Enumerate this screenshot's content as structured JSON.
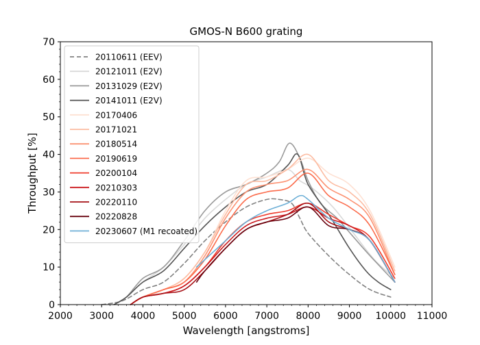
{
  "chart_data": {
    "type": "line",
    "title": "GMOS-N B600 grating",
    "xlabel": "Wavelength [angstroms]",
    "ylabel": "Throughput [%]",
    "xlim": [
      2000,
      11000
    ],
    "ylim": [
      0,
      70
    ],
    "xticks": [
      2000,
      3000,
      4000,
      5000,
      6000,
      7000,
      8000,
      9000,
      10000,
      11000
    ],
    "yticks": [
      0,
      10,
      20,
      30,
      40,
      50,
      60,
      70
    ],
    "grid": false,
    "legend_position": "upper-left",
    "series": [
      {
        "name": "20110611 (EEV)",
        "color": "#808080",
        "dash": true,
        "x": [
          3000,
          3500,
          4000,
          4500,
          5000,
          5500,
          6000,
          6500,
          7000,
          7300,
          7600,
          7800,
          8000,
          8500,
          9000,
          9500,
          10000
        ],
        "y": [
          0,
          1,
          4,
          6,
          11,
          17,
          22,
          26,
          28,
          28,
          27,
          23,
          19,
          13,
          8,
          4,
          2
        ]
      },
      {
        "name": "20121011 (E2V)",
        "color": "#d9d9d9",
        "dash": false,
        "x": [
          3300,
          3600,
          4000,
          4500,
          5000,
          5500,
          6000,
          6500,
          7000,
          7500,
          7800,
          8100,
          8600,
          9100,
          9600,
          10100
        ],
        "y": [
          0,
          2,
          6,
          10,
          16,
          23,
          28,
          32,
          34,
          36,
          33,
          31,
          26,
          19,
          12,
          7
        ]
      },
      {
        "name": "20131029 (E2V)",
        "color": "#999999",
        "dash": false,
        "x": [
          3300,
          3600,
          4000,
          4500,
          5000,
          5500,
          6000,
          6500,
          7000,
          7300,
          7550,
          7800,
          8000,
          8300,
          8700,
          9100,
          9500,
          10100
        ],
        "y": [
          0,
          2,
          7,
          10,
          17,
          25,
          30,
          32,
          35,
          38,
          43,
          39,
          33,
          27,
          23,
          18,
          13,
          6
        ]
      },
      {
        "name": "20141011 (E2V)",
        "color": "#525252",
        "dash": false,
        "x": [
          3300,
          3600,
          4000,
          4500,
          5000,
          5500,
          6000,
          6500,
          7000,
          7500,
          7750,
          8000,
          8500,
          9000,
          9400,
          9700,
          10000
        ],
        "y": [
          0,
          2,
          6,
          9,
          15,
          21,
          26,
          30,
          32,
          37,
          40,
          32,
          24,
          15,
          9,
          6,
          4
        ]
      },
      {
        "name": "20170406",
        "color": "#fee0d2",
        "dash": false,
        "x": [
          3700,
          4000,
          4500,
          5000,
          5500,
          6000,
          6500,
          7000,
          7500,
          8000,
          8500,
          9000,
          9500,
          10100
        ],
        "y": [
          0,
          2,
          4,
          7,
          14,
          25,
          33,
          34,
          36,
          39,
          35,
          32,
          25,
          10
        ]
      },
      {
        "name": "20171021",
        "color": "#fcbba1",
        "dash": false,
        "x": [
          3700,
          4000,
          4500,
          5000,
          5500,
          6000,
          6500,
          7000,
          7500,
          8000,
          8500,
          9000,
          9500,
          10100
        ],
        "y": [
          0,
          2,
          4,
          7,
          14,
          24,
          32,
          33,
          36,
          40,
          33,
          30,
          24,
          9
        ]
      },
      {
        "name": "20180514",
        "color": "#fc9272",
        "dash": false,
        "x": [
          3700,
          4000,
          4500,
          5000,
          5500,
          6000,
          6500,
          7000,
          7500,
          8000,
          8500,
          9000,
          9500,
          10100
        ],
        "y": [
          0,
          2,
          4,
          6,
          13,
          23,
          30,
          32,
          33,
          36,
          31,
          28,
          23,
          8
        ]
      },
      {
        "name": "20190619",
        "color": "#fb6a4a",
        "dash": false,
        "x": [
          3700,
          4000,
          4500,
          5000,
          5500,
          6000,
          6500,
          7000,
          7500,
          8000,
          8500,
          9000,
          9500,
          10100
        ],
        "y": [
          0,
          2,
          4,
          6,
          12,
          21,
          28,
          30,
          31,
          35,
          29,
          26,
          21,
          8
        ]
      },
      {
        "name": "20200104",
        "color": "#ef3b2c",
        "dash": false,
        "x": [
          3700,
          4000,
          4500,
          5000,
          5500,
          6000,
          6500,
          7000,
          7500,
          8000,
          8500,
          9000,
          9500,
          10100
        ],
        "y": [
          0,
          2,
          3,
          5,
          10,
          17,
          22,
          24,
          25,
          27,
          24,
          21,
          18,
          7
        ]
      },
      {
        "name": "20210303",
        "color": "#cb181d",
        "dash": false,
        "x": [
          3700,
          4000,
          4500,
          5000,
          5500,
          6000,
          6500,
          7000,
          7500,
          8000,
          8500,
          9000,
          9500,
          10100
        ],
        "y": [
          0,
          2,
          3,
          5,
          10,
          16,
          21,
          23,
          24,
          26,
          23,
          21,
          17,
          6
        ]
      },
      {
        "name": "20220110",
        "color": "#a50f15",
        "dash": false,
        "x": [
          3700,
          4000,
          4500,
          5000,
          5500,
          6000,
          6500,
          7000,
          7500,
          8000,
          8500,
          9000,
          9500,
          10100
        ],
        "y": [
          0,
          2,
          3,
          4,
          9,
          15,
          20,
          22,
          24,
          27,
          22,
          20,
          17,
          6
        ]
      },
      {
        "name": "20220828",
        "color": "#67000d",
        "dash": false,
        "x": [
          5300,
          5500,
          6000,
          6500,
          7000,
          7500,
          8000,
          8500,
          9000,
          9500,
          10100
        ],
        "y": [
          6,
          9,
          15,
          20,
          22,
          23,
          26,
          21,
          20,
          17,
          6
        ]
      },
      {
        "name": "20230607 (M1 recoated)",
        "color": "#6baed6",
        "dash": false,
        "x": [
          5300,
          5500,
          6000,
          6500,
          7000,
          7500,
          7800,
          8000,
          8500,
          9000,
          9500,
          10100
        ],
        "y": [
          10,
          12,
          17,
          22,
          25,
          27,
          29,
          28,
          23,
          20,
          17,
          6
        ]
      }
    ]
  }
}
